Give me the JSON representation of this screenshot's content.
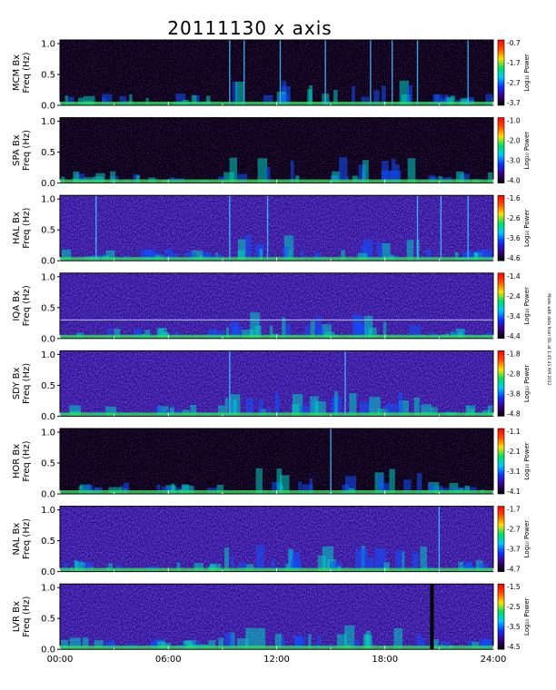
{
  "figure_title": "20111130 x axis",
  "side_note": "Made with data from IDL at 1:45:41 AM 2012",
  "colorbar_label": "Log₁₀ Power",
  "ylabel_suffix": "Freq (Hz)",
  "chart_data": {
    "type": "heatmap",
    "title": "20111130 x axis",
    "x_tick_labels": [
      "00:00",
      "06:00",
      "12:00",
      "18:00",
      "24:00"
    ],
    "x_range_hours": [
      0,
      24
    ],
    "y_tick_labels": [
      "0.0",
      "0.5",
      "1.0"
    ],
    "ylim_hz": [
      0.0,
      1.0
    ],
    "colorscale": [
      "#000000",
      "#3b0080",
      "#1030ff",
      "#00c8ff",
      "#00e060",
      "#ffe000",
      "#ff5000",
      "#ff0000"
    ],
    "panels": [
      {
        "station": "MCM Bx",
        "colorbar_ticks": [
          "-0.7",
          "-1.7",
          "-2.7",
          "-3.7"
        ],
        "dark_background": true,
        "vertical_lines_hours": [
          9.4,
          10.2,
          12.2,
          14.7,
          17.2,
          18.4,
          19.8,
          22.6
        ]
      },
      {
        "station": "SPA Bx",
        "colorbar_ticks": [
          "-1.0",
          "-2.0",
          "-3.0",
          "-4.0"
        ],
        "dark_background": true,
        "vertical_lines_hours": []
      },
      {
        "station": "HAL Bx",
        "colorbar_ticks": [
          "-1.6",
          "-2.6",
          "-3.6",
          "-4.6"
        ],
        "dark_background": false,
        "vertical_lines_hours": [
          2.0,
          9.4,
          11.5,
          19.8,
          21.1,
          22.6
        ]
      },
      {
        "station": "IQA Bx",
        "colorbar_ticks": [
          "-1.4",
          "-2.4",
          "-3.4",
          "-4.4"
        ],
        "dark_background": false,
        "vertical_lines_hours": [],
        "horizontal_line_hz": 0.3
      },
      {
        "station": "SDY Bx",
        "colorbar_ticks": [
          "-1.8",
          "-2.8",
          "-3.8",
          "-4.8"
        ],
        "dark_background": false,
        "vertical_lines_hours": [
          9.4,
          15.8
        ]
      },
      {
        "station": "HOR Bx",
        "colorbar_ticks": [
          "-1.1",
          "-2.1",
          "-3.1",
          "-4.1"
        ],
        "dark_background": true,
        "vertical_lines_hours": [
          15.0
        ]
      },
      {
        "station": "NAL Bx",
        "colorbar_ticks": [
          "-1.7",
          "-2.7",
          "-3.7",
          "-4.7"
        ],
        "dark_background": false,
        "vertical_lines_hours": [
          21.0
        ]
      },
      {
        "station": "LVR Bx",
        "colorbar_ticks": [
          "-1.5",
          "-2.5",
          "-3.5",
          "-4.5"
        ],
        "dark_background": false,
        "vertical_lines_hours": [],
        "data_gap_hours": [
          20.5,
          20.7
        ]
      }
    ]
  }
}
